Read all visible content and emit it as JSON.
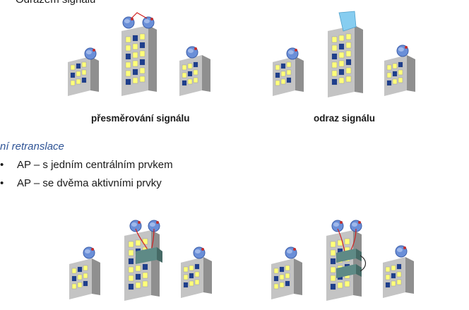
{
  "top_line": "Odrazem signálu",
  "figures": {
    "caption_left": "přesměrování signálu",
    "caption_right": "odraz signálu"
  },
  "section": {
    "heading": "ní retranslace",
    "bullets": [
      {
        "marker": "•",
        "text": "AP – s jedním centrálním prvkem"
      },
      {
        "marker": "•",
        "text": "AP – se dvěma aktivními prvky"
      }
    ]
  },
  "colors": {
    "building_front": "#c4c4c4",
    "building_side": "#8f8f8f",
    "window_yellow": "#ffff7a",
    "window_blue": "#1f3f8c",
    "antenna": "#6a8fd8",
    "reflector": "#87cdf0",
    "relay_box": "#5e8a86",
    "cable": "#d02020",
    "heading": "#2f5496"
  }
}
